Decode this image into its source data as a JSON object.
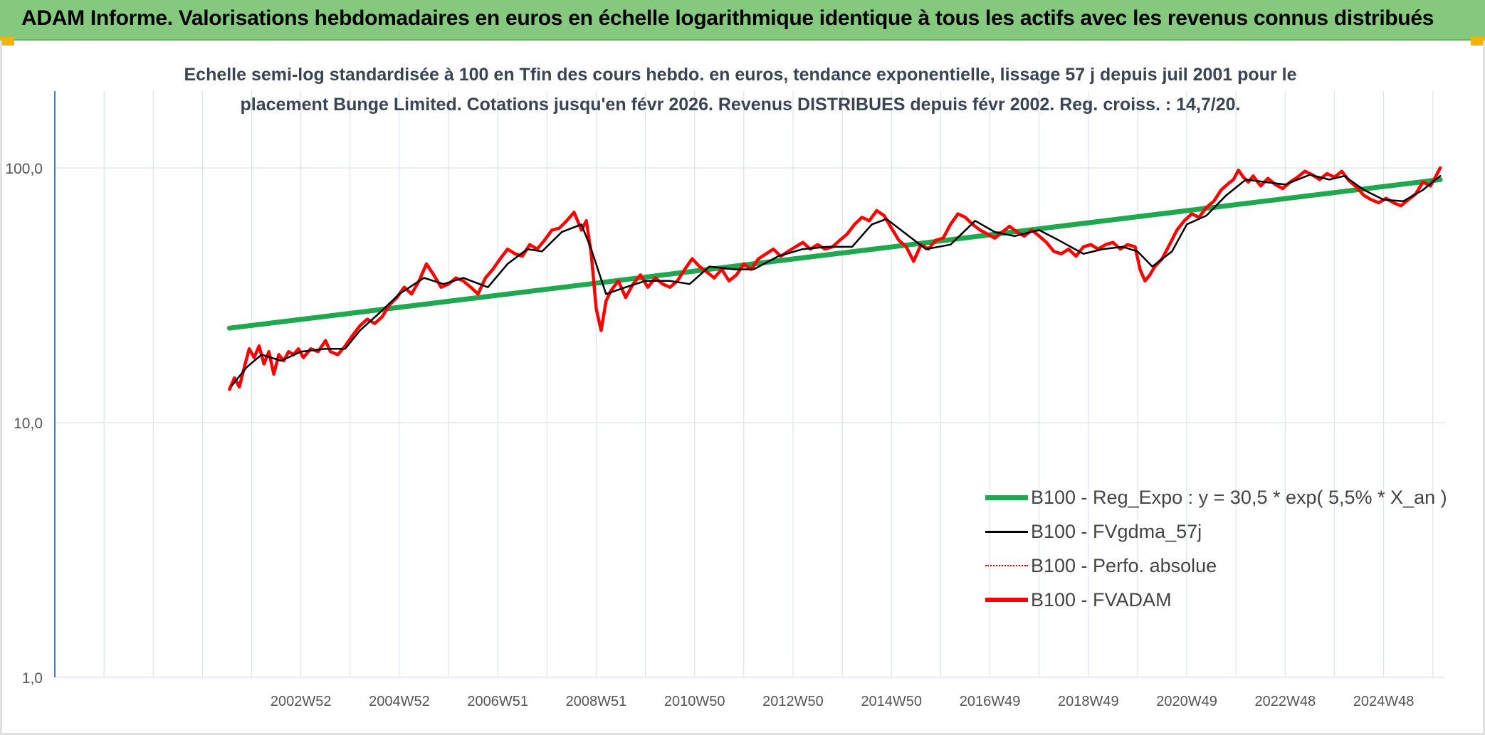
{
  "banner": {
    "title": "ADAM Informe. Valorisations hebdomadaires en euros en échelle logarithmique identique à tous les actifs avec les revenus connus distribués"
  },
  "chart_data": {
    "type": "line",
    "title_lines": [
      "Echelle semi-log standardisée à 100 en Tfin des cours hebdo. en euros, tendance exponentielle, lissage 57 j depuis juil 2001 pour le",
      "placement Bunge Limited. Cotations jusqu'en févr 2026. Revenus DISTRIBUES depuis févr 2002. Reg. croiss. : 14,7/20."
    ],
    "y_scale": "log",
    "ylim": [
      1,
      100
    ],
    "y_tick_values": [
      1,
      10,
      100
    ],
    "y_tick_labels": [
      "1,0",
      "10,0",
      "100,0"
    ],
    "x_tick_labels": [
      "2002W52",
      "2004W52",
      "2006W51",
      "2008W51",
      "2010W50",
      "2012W50",
      "2014W50",
      "2016W49",
      "2018W49",
      "2020W49",
      "2022W48",
      "2024W48"
    ],
    "x_tick_years": [
      2003.0,
      2005.0,
      2007.0,
      2009.0,
      2011.0,
      2013.0,
      2015.0,
      2017.0,
      2019.0,
      2021.0,
      2023.0,
      2025.0
    ],
    "xlim_years": [
      1998.0,
      2026.25
    ],
    "grid": true,
    "legend_position": "bottom-right",
    "series": [
      {
        "name": "B100 - Reg_Expo : y = 30,5 * exp( 5,5% *  X_an )",
        "color": "#1fa84f",
        "kind": "trend",
        "x": [
          2001.55,
          2026.15
        ],
        "y": [
          23.5,
          90.0
        ]
      },
      {
        "name": "B100 - FVgdma_57j",
        "color": "#000000",
        "kind": "smooth",
        "x": [
          2001.6,
          2001.9,
          2002.2,
          2002.6,
          2003.0,
          2003.5,
          2003.9,
          2004.2,
          2004.6,
          2005.0,
          2005.5,
          2005.9,
          2006.3,
          2006.8,
          2007.2,
          2007.6,
          2007.9,
          2008.3,
          2008.7,
          2008.9,
          2009.2,
          2009.6,
          2010.0,
          2010.5,
          2010.9,
          2011.3,
          2011.8,
          2012.2,
          2012.7,
          2013.2,
          2013.7,
          2014.2,
          2014.6,
          2014.9,
          2015.3,
          2015.7,
          2016.2,
          2016.7,
          2017.1,
          2017.5,
          2018.0,
          2018.4,
          2018.9,
          2019.3,
          2019.7,
          2020.0,
          2020.3,
          2020.7,
          2021.0,
          2021.4,
          2021.8,
          2022.2,
          2022.6,
          2023.0,
          2023.5,
          2023.9,
          2024.2,
          2024.6,
          2025.0,
          2025.4,
          2025.8,
          2026.15
        ],
        "y": [
          14.0,
          16.5,
          18.5,
          17.5,
          19.0,
          19.5,
          19.5,
          23.0,
          27.0,
          32.0,
          37.0,
          35.0,
          37.0,
          34.0,
          42.0,
          48.0,
          47.0,
          56.0,
          60.0,
          48.0,
          32.0,
          34.0,
          36.0,
          36.0,
          35.0,
          41.0,
          40.0,
          40.0,
          45.0,
          48.0,
          49.0,
          49.0,
          60.0,
          63.0,
          55.0,
          48.0,
          50.0,
          62.0,
          56.0,
          54.0,
          57.0,
          52.0,
          46.0,
          48.0,
          49.0,
          47.0,
          41.0,
          47.0,
          60.0,
          65.0,
          78.0,
          90.0,
          88.0,
          86.0,
          94.0,
          90.0,
          93.0,
          82.0,
          75.0,
          74.0,
          82.0,
          93.0
        ]
      },
      {
        "name": "B100 - Perfo. absolue",
        "color": "#d40000",
        "kind": "dotted",
        "x": [],
        "y": []
      },
      {
        "name": "B100 - FVADAM",
        "color": "#ff0000",
        "kind": "main",
        "x": [
          2001.55,
          2001.65,
          2001.75,
          2001.85,
          2001.95,
          2002.05,
          2002.15,
          2002.25,
          2002.35,
          2002.45,
          2002.55,
          2002.65,
          2002.75,
          2002.85,
          2002.95,
          2003.05,
          2003.2,
          2003.35,
          2003.5,
          2003.6,
          2003.75,
          2003.9,
          2004.05,
          2004.2,
          2004.35,
          2004.5,
          2004.65,
          2004.8,
          2004.95,
          2005.1,
          2005.25,
          2005.4,
          2005.55,
          2005.7,
          2005.85,
          2006.0,
          2006.15,
          2006.3,
          2006.45,
          2006.6,
          2006.75,
          2006.9,
          2007.05,
          2007.2,
          2007.35,
          2007.5,
          2007.65,
          2007.8,
          2007.95,
          2008.1,
          2008.25,
          2008.4,
          2008.55,
          2008.7,
          2008.8,
          2008.9,
          2009.0,
          2009.1,
          2009.2,
          2009.3,
          2009.45,
          2009.6,
          2009.75,
          2009.9,
          2010.05,
          2010.2,
          2010.35,
          2010.5,
          2010.65,
          2010.8,
          2010.95,
          2011.1,
          2011.25,
          2011.4,
          2011.55,
          2011.7,
          2011.85,
          2012.0,
          2012.15,
          2012.3,
          2012.45,
          2012.6,
          2012.75,
          2012.9,
          2013.05,
          2013.2,
          2013.35,
          2013.5,
          2013.65,
          2013.8,
          2013.95,
          2014.1,
          2014.25,
          2014.4,
          2014.55,
          2014.7,
          2014.85,
          2015.0,
          2015.15,
          2015.3,
          2015.45,
          2015.6,
          2015.75,
          2015.9,
          2016.05,
          2016.2,
          2016.35,
          2016.5,
          2016.65,
          2016.8,
          2016.95,
          2017.1,
          2017.25,
          2017.4,
          2017.55,
          2017.7,
          2017.85,
          2018.0,
          2018.15,
          2018.3,
          2018.45,
          2018.6,
          2018.75,
          2018.9,
          2019.05,
          2019.2,
          2019.35,
          2019.5,
          2019.65,
          2019.8,
          2019.95,
          2020.05,
          2020.15,
          2020.25,
          2020.35,
          2020.5,
          2020.65,
          2020.8,
          2020.95,
          2021.1,
          2021.25,
          2021.4,
          2021.55,
          2021.7,
          2021.85,
          2021.95,
          2022.05,
          2022.15,
          2022.25,
          2022.35,
          2022.5,
          2022.65,
          2022.8,
          2022.95,
          2023.1,
          2023.25,
          2023.4,
          2023.55,
          2023.7,
          2023.85,
          2024.0,
          2024.15,
          2024.3,
          2024.45,
          2024.6,
          2024.75,
          2024.9,
          2025.05,
          2025.2,
          2025.35,
          2025.5,
          2025.65,
          2025.8,
          2025.95,
          2026.05,
          2026.15
        ],
        "y": [
          13.5,
          15.0,
          13.8,
          16.5,
          19.5,
          18.0,
          20.0,
          17.0,
          19.0,
          15.5,
          18.5,
          17.5,
          19.0,
          18.5,
          19.5,
          18.0,
          19.5,
          19.0,
          21.0,
          19.0,
          18.5,
          20.0,
          22.0,
          24.0,
          25.5,
          24.5,
          26.0,
          29.0,
          31.0,
          34.0,
          32.0,
          36.0,
          42.0,
          38.0,
          34.0,
          35.0,
          37.0,
          36.0,
          34.0,
          32.0,
          37.0,
          40.0,
          44.0,
          48.0,
          46.0,
          45.0,
          50.0,
          48.0,
          52.0,
          57.0,
          58.0,
          62.0,
          67.0,
          57.0,
          62.0,
          46.0,
          28.0,
          23.0,
          30.0,
          33.0,
          36.0,
          31.0,
          35.0,
          38.0,
          34.0,
          37.0,
          35.0,
          34.0,
          36.0,
          40.0,
          44.0,
          41.0,
          39.0,
          37.0,
          40.0,
          36.0,
          38.0,
          42.0,
          40.0,
          44.0,
          46.0,
          48.0,
          45.0,
          47.0,
          49.0,
          51.0,
          48.0,
          50.0,
          48.0,
          49.0,
          52.0,
          55.0,
          60.0,
          64.0,
          62.0,
          68.0,
          65.0,
          58.0,
          52.0,
          49.0,
          43.0,
          50.0,
          48.0,
          52.0,
          53.0,
          60.0,
          66.0,
          64.0,
          60.0,
          57.0,
          55.0,
          53.0,
          56.0,
          59.0,
          56.0,
          54.0,
          57.0,
          54.0,
          51.0,
          47.0,
          46.0,
          48.0,
          45.0,
          49.0,
          50.0,
          48.0,
          50.0,
          51.0,
          48.0,
          50.0,
          49.0,
          40.0,
          36.0,
          38.0,
          41.0,
          44.0,
          50.0,
          57.0,
          62.0,
          66.0,
          64.0,
          70.0,
          74.0,
          82.0,
          87.0,
          90.0,
          98.0,
          92.0,
          88.0,
          93.0,
          85.0,
          91.0,
          86.0,
          83.0,
          88.0,
          92.0,
          97.0,
          94.0,
          90.0,
          95.0,
          92.0,
          97.0,
          89.0,
          84.0,
          78.0,
          75.0,
          73.0,
          76.0,
          73.0,
          71.0,
          75.0,
          79.0,
          88.0,
          85.0,
          92.0,
          100.0
        ]
      }
    ]
  }
}
